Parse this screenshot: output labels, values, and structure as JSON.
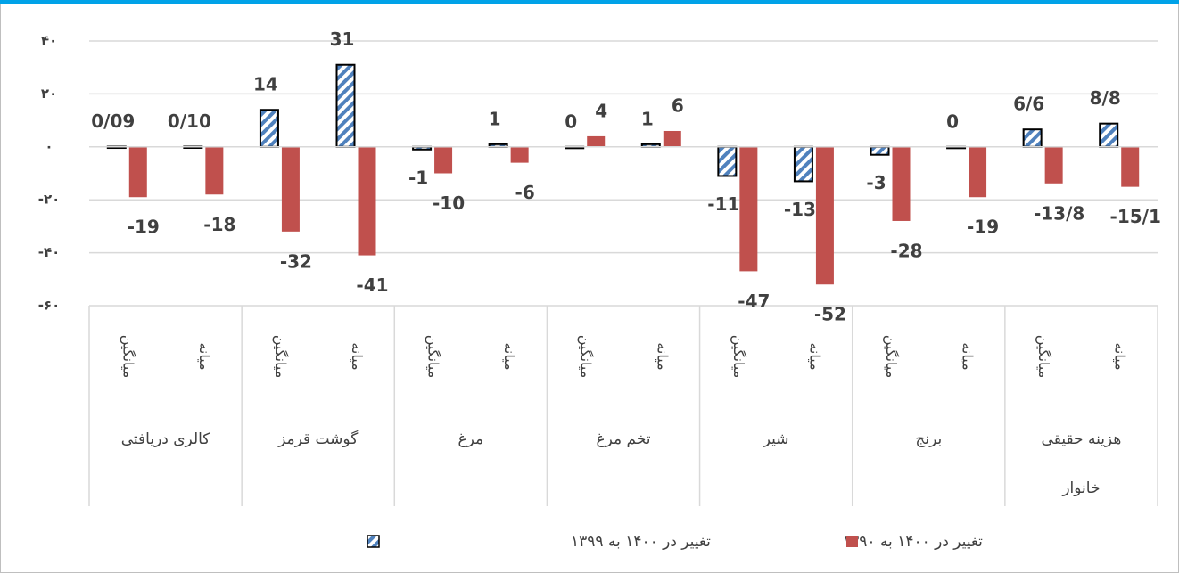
{
  "chart_data": {
    "type": "bar",
    "categories": [
      "میانگین",
      "میانه",
      "میانگین",
      "میانه",
      "میانگین",
      "میانه",
      "میانگین",
      "میانه",
      "میانگین",
      "میانه",
      "میانگین",
      "میانه",
      "میانگین",
      "میانه"
    ],
    "category_groups": [
      "کالری دریافتی",
      "گوشت قرمز",
      "مرغ",
      "تخم مرغ",
      "شیر",
      "برنج",
      "هزینه حقیقی خانوار"
    ],
    "series": [
      {
        "name": "تغییر در ۱۴۰۰ به ۱۳۹۹",
        "color": "#4f81bd",
        "pattern": "diagonal",
        "values": [
          0.09,
          0.1,
          14,
          31,
          -1,
          1,
          0,
          1,
          -11,
          -13,
          -3,
          0,
          6.6,
          8.8
        ],
        "value_labels": [
          "0/09",
          "0/10",
          "14",
          "31",
          "-1",
          "1",
          "0",
          "1",
          "-11",
          "-13",
          "-3",
          "0",
          "6/6",
          "8/8"
        ]
      },
      {
        "name": "تغییر در ۱۴۰۰ به ۱۳۹۰",
        "color": "#c0504d",
        "values": [
          -19,
          -18,
          -32,
          -41,
          -10,
          -6,
          4,
          6,
          -47,
          -52,
          -28,
          -19,
          -13.8,
          -15.1
        ],
        "value_labels": [
          "-19",
          "-18",
          "-32",
          "-41",
          "-10",
          "-6",
          "4",
          "6",
          "-47",
          "-52",
          "-28",
          "-19",
          "-13/8",
          "-15/1"
        ]
      }
    ],
    "ylim": [
      -60,
      40
    ],
    "yticks": [
      {
        "value": 40,
        "label": "۴۰"
      },
      {
        "value": 20,
        "label": "۲۰"
      },
      {
        "value": 0,
        "label": "۰"
      },
      {
        "value": -20,
        "label": "-۲۰"
      },
      {
        "value": -40,
        "label": "-۴۰"
      },
      {
        "value": -60,
        "label": "-۶۰"
      }
    ],
    "grid": true,
    "legend": "bottom"
  }
}
